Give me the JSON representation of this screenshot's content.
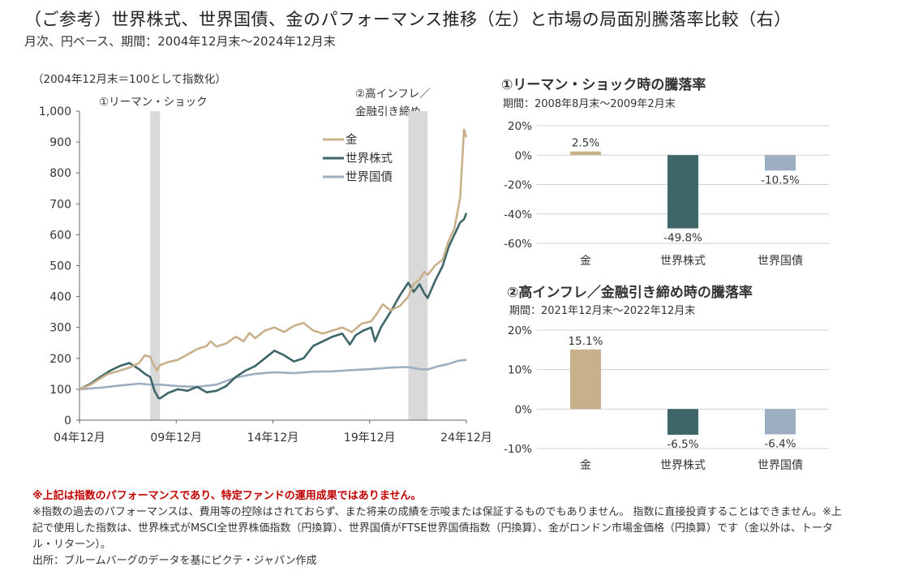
{
  "header": {
    "title": "（ご参考）世界株式、世界国債、金のパフォーマンス推移（左）と市場の局面別騰落率比較（右）",
    "subtitle": "月次、円ベース、期間：2004年12月末～2024年12月末"
  },
  "left_chart": {
    "note": "（2004年12月末＝100として指数化）",
    "shade_labels": [
      "①リーマン・ショック",
      "②高インフレ／",
      "金融引き締め"
    ]
  },
  "right_top": {
    "title": "①リーマン・ショック時の騰落率",
    "period": "期間：2008年8月末～2009年2月末"
  },
  "right_bottom": {
    "title": "②高インフレ／金融引き締め時の騰落率",
    "period": "期間：2021年12月末～2022年12月末"
  },
  "notes": {
    "warning": "※上記は指数のパフォーマンスであり、特定ファンドの運用成果ではありません。",
    "lines": [
      "※指数の過去のパフォーマンスは、費用等の控除はされておらず、また将来の成績を示唆または保証するものでもありません。 指数に直接投資することはできません。※上記で使用した指数は、世界株式がMSCI全世界株価指数（円換算）、世界国債がFTSE世界国債指数（円換算）、金がロンドン市場金価格（円換算）です（金以外は、トータル・リターン）。",
      "出所：ブルームバーグのデータを基にピクテ・ジャパン作成"
    ]
  },
  "chart_data": [
    {
      "type": "line",
      "x_unit": "year",
      "xlim": [
        2004.92,
        2024.92
      ],
      "ylim": [
        0,
        1000
      ],
      "yticks": [
        0,
        100,
        200,
        300,
        400,
        500,
        600,
        700,
        800,
        900,
        1000
      ],
      "ytick_labels": [
        "0",
        "100",
        "200",
        "300",
        "400",
        "500",
        "600",
        "700",
        "800",
        "900",
        "1,000"
      ],
      "xticks": [
        2004.92,
        2009.92,
        2014.92,
        2019.92,
        2024.92
      ],
      "xtick_labels": [
        "04年12月",
        "09年12月",
        "14年12月",
        "19年12月",
        "24年12月"
      ],
      "shaded_periods": [
        [
          2008.58,
          2009.08
        ],
        [
          2021.92,
          2022.92
        ]
      ],
      "legend_position": "top-right",
      "series": [
        {
          "name": "金",
          "color": "#c8b18a",
          "x": [
            2004.92,
            2005.5,
            2006.0,
            2006.4,
            2006.9,
            2007.5,
            2008.0,
            2008.3,
            2008.58,
            2008.75,
            2008.92,
            2009.08,
            2009.5,
            2010.0,
            2010.5,
            2011.0,
            2011.5,
            2011.7,
            2012.0,
            2012.5,
            2013.0,
            2013.4,
            2013.7,
            2014.0,
            2014.5,
            2015.0,
            2015.5,
            2016.0,
            2016.5,
            2017.0,
            2017.5,
            2018.0,
            2018.5,
            2019.0,
            2019.5,
            2020.0,
            2020.3,
            2020.6,
            2021.0,
            2021.5,
            2021.92,
            2022.2,
            2022.5,
            2022.75,
            2022.92,
            2023.3,
            2023.7,
            2024.0,
            2024.3,
            2024.6,
            2024.8,
            2024.92
          ],
          "values": [
            100,
            115,
            135,
            150,
            158,
            170,
            185,
            210,
            205,
            180,
            160,
            178,
            188,
            195,
            212,
            230,
            240,
            255,
            238,
            248,
            270,
            255,
            282,
            265,
            290,
            300,
            285,
            305,
            315,
            290,
            280,
            290,
            300,
            285,
            312,
            320,
            345,
            375,
            355,
            370,
            400,
            440,
            455,
            480,
            470,
            500,
            520,
            580,
            620,
            720,
            940,
            915
          ]
        },
        {
          "name": "世界株式",
          "color": "#3e6668",
          "x": [
            2004.92,
            2005.5,
            2006.0,
            2006.5,
            2007.0,
            2007.5,
            2008.0,
            2008.3,
            2008.58,
            2008.8,
            2009.0,
            2009.08,
            2009.5,
            2010.0,
            2010.5,
            2011.0,
            2011.5,
            2012.0,
            2012.5,
            2013.0,
            2013.5,
            2014.0,
            2014.5,
            2015.0,
            2015.5,
            2016.0,
            2016.5,
            2017.0,
            2017.5,
            2018.0,
            2018.5,
            2018.9,
            2019.2,
            2019.6,
            2020.0,
            2020.2,
            2020.5,
            2021.0,
            2021.5,
            2021.92,
            2022.2,
            2022.5,
            2022.75,
            2022.92,
            2023.3,
            2023.7,
            2024.0,
            2024.3,
            2024.6,
            2024.8,
            2024.92
          ],
          "values": [
            100,
            118,
            140,
            160,
            175,
            185,
            165,
            150,
            140,
            95,
            72,
            70,
            88,
            100,
            95,
            108,
            90,
            95,
            110,
            140,
            160,
            175,
            200,
            225,
            210,
            190,
            200,
            240,
            255,
            270,
            280,
            245,
            275,
            290,
            300,
            255,
            300,
            350,
            405,
            445,
            415,
            440,
            410,
            395,
            450,
            500,
            560,
            600,
            640,
            650,
            670
          ]
        },
        {
          "name": "世界国債",
          "color": "#9caebf",
          "x": [
            2004.92,
            2006.0,
            2007.0,
            2007.5,
            2008.0,
            2008.58,
            2009.08,
            2010.0,
            2011.0,
            2012.0,
            2013.0,
            2014.0,
            2015.0,
            2016.0,
            2017.0,
            2018.0,
            2019.0,
            2020.0,
            2021.0,
            2021.92,
            2022.5,
            2022.92,
            2023.5,
            2024.0,
            2024.5,
            2024.92
          ],
          "values": [
            100,
            105,
            112,
            115,
            118,
            115,
            115,
            110,
            108,
            115,
            138,
            150,
            155,
            152,
            157,
            158,
            162,
            165,
            170,
            172,
            165,
            164,
            175,
            182,
            192,
            195
          ]
        }
      ]
    },
    {
      "type": "bar",
      "title": "①リーマン・ショック時の騰落率",
      "categories": [
        "金",
        "世界株式",
        "世界国債"
      ],
      "values": [
        2.5,
        -49.8,
        -10.5
      ],
      "data_labels": [
        "2.5%",
        "-49.8%",
        "-10.5%"
      ],
      "colors": [
        "#c8b18a",
        "#3e6668",
        "#9caebf"
      ],
      "ylim": [
        -60,
        20
      ],
      "yticks": [
        20,
        0,
        -20,
        -40,
        -60
      ],
      "ytick_labels": [
        "20%",
        "0%",
        "-20%",
        "-40%",
        "-60%"
      ]
    },
    {
      "type": "bar",
      "title": "②高インフレ／金融引き締め時の騰落率",
      "categories": [
        "金",
        "世界株式",
        "世界国債"
      ],
      "values": [
        15.1,
        -6.5,
        -6.4
      ],
      "data_labels": [
        "15.1%",
        "-6.5%",
        "-6.4%"
      ],
      "colors": [
        "#c8b18a",
        "#3e6668",
        "#9caebf"
      ],
      "ylim": [
        -10,
        20
      ],
      "yticks": [
        20,
        10,
        0,
        -10
      ],
      "ytick_labels": [
        "20%",
        "10%",
        "0%",
        "-10%"
      ]
    }
  ]
}
